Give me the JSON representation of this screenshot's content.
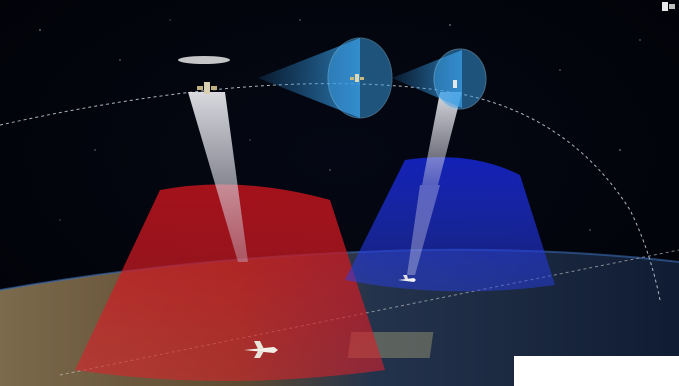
{
  "scene": {
    "description_labels": [],
    "colors": {
      "space": "#02030a",
      "earth_land": "#6f5a3a",
      "earth_ocean": "#1a2a44",
      "red_footprint": "#d01a22",
      "blue_footprint": "#1a2bd8",
      "sensor_cone": "#2b8fd6",
      "beam": "#e8e8f0",
      "orbit_line": "#c9d2dc"
    },
    "icons": {
      "corner": "view-control-icon",
      "satellite_left": "satellite-icon",
      "satellite_center": "satellite-icon",
      "satellite_right": "satellite-icon",
      "aircraft_left": "aircraft-icon",
      "aircraft_right": "aircraft-icon"
    }
  }
}
